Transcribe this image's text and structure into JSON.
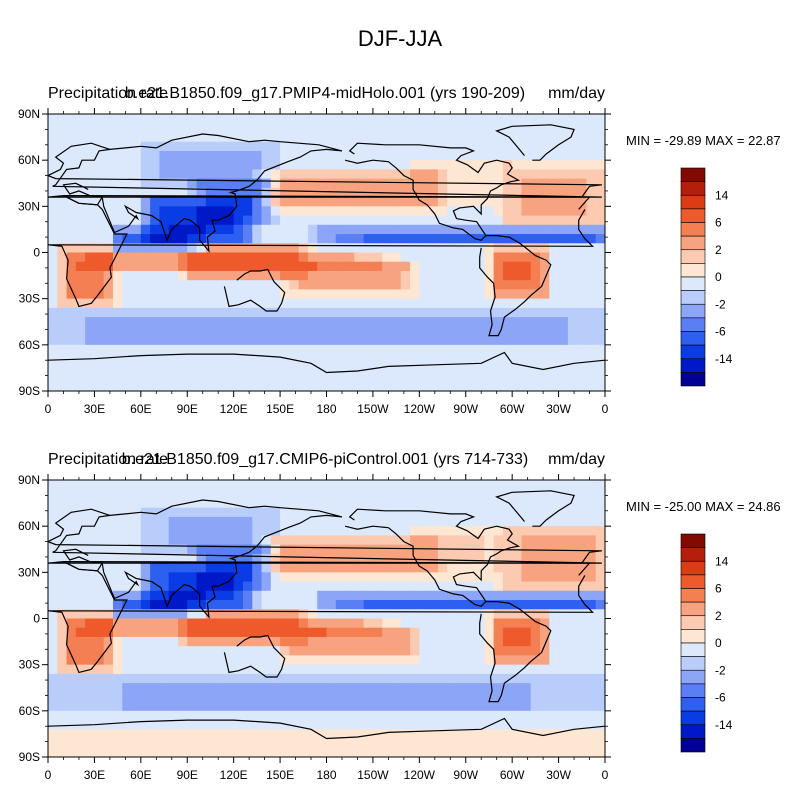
{
  "page_title": "DJF-JJA",
  "colorbar": {
    "levels": [
      -20,
      -14,
      -10,
      -6,
      -4,
      -2,
      -1,
      0,
      1,
      2,
      4,
      6,
      10,
      14,
      20
    ],
    "colors": [
      "#000096",
      "#0019c8",
      "#0a3ce6",
      "#2d5ff0",
      "#5a7ff5",
      "#8ca5f7",
      "#b9cdfa",
      "#dce8fc",
      "#fde6d2",
      "#fccab0",
      "#f8a380",
      "#f47f52",
      "#ee5a2c",
      "#dc3c14",
      "#b41e0a",
      "#820a00"
    ],
    "tick_labels": [
      "14",
      "6",
      "2",
      "0",
      "-2",
      "-6",
      "-14"
    ]
  },
  "axes": {
    "lat_labels": [
      "90N",
      "60N",
      "30N",
      "0",
      "30S",
      "60S",
      "90S"
    ],
    "lon_labels": [
      "0",
      "30E",
      "60E",
      "90E",
      "120E",
      "150E",
      "180",
      "150W",
      "120W",
      "90W",
      "60W",
      "30W",
      "0"
    ]
  },
  "panels": [
    {
      "left_title": "Precipitation rate",
      "center_title": "b.e21.B1850.f09_g17.PMIP4-midHolo.001 (yrs 190-209)",
      "right_title": "mm/day",
      "minmax": "MIN = -29.89 MAX =  22.87"
    },
    {
      "left_title": "Precipitation rate",
      "center_title": "b.e21.B1850.f09_g17.CMIP6-piControl.001 (yrs 714-733)",
      "right_title": "mm/day",
      "minmax": "MIN = -25.00 MAX =  24.86"
    }
  ],
  "map_data": {
    "projection": "cylindrical-equidistant",
    "lon_range": [
      0,
      360
    ],
    "lat_range": [
      -90,
      90
    ],
    "background_value": -0.5,
    "features": [
      {
        "name": "itcz-atlantic-pacific-negative",
        "lon": [
          200,
          360
        ],
        "lat": [
          5,
          14
        ],
        "value": -8
      },
      {
        "name": "indian-ocean-negative",
        "lon": [
          48,
          95
        ],
        "lat": [
          4,
          14
        ],
        "value": -9
      },
      {
        "name": "south-asia-monsoon-negative",
        "lon": [
          70,
          125
        ],
        "lat": [
          10,
          32
        ],
        "value": -12
      },
      {
        "name": "east-asia-negative",
        "lon": [
          100,
          140
        ],
        "lat": [
          20,
          45
        ],
        "value": -5
      },
      {
        "name": "siberia-negative",
        "lon": [
          70,
          140
        ],
        "lat": [
          45,
          70
        ],
        "value": -2
      },
      {
        "name": "north-pacific-positive",
        "lon": [
          150,
          240
        ],
        "lat": [
          30,
          50
        ],
        "value": 4
      },
      {
        "name": "north-atlantic-positive",
        "lon": [
          300,
          355
        ],
        "lat": [
          20,
          55
        ],
        "value": 3
      },
      {
        "name": "north-america-positive",
        "lon": [
          240,
          290
        ],
        "lat": [
          30,
          55
        ],
        "value": 1.5
      },
      {
        "name": "africa-south-positive",
        "lon": [
          12,
          40
        ],
        "lat": [
          -30,
          0
        ],
        "value": 6
      },
      {
        "name": "south-equatorial-band-positive",
        "lon": [
          40,
          200
        ],
        "lat": [
          -12,
          0
        ],
        "value": 4
      },
      {
        "name": "maritime-continent-positive",
        "lon": [
          95,
          160
        ],
        "lat": [
          -15,
          3
        ],
        "value": 5
      },
      {
        "name": "spcz-positive",
        "lon": [
          160,
          230
        ],
        "lat": [
          -25,
          -8
        ],
        "value": 4
      },
      {
        "name": "south-america-positive",
        "lon": [
          290,
          320
        ],
        "lat": [
          -25,
          0
        ],
        "value": 7
      },
      {
        "name": "southern-ocean-negative",
        "lon": [
          0,
          360
        ],
        "lat": [
          -60,
          -40
        ],
        "value": -2
      },
      {
        "name": "antarctic-positive",
        "lon": [
          0,
          360
        ],
        "lat": [
          -90,
          -70
        ],
        "value": 0.5
      }
    ]
  }
}
